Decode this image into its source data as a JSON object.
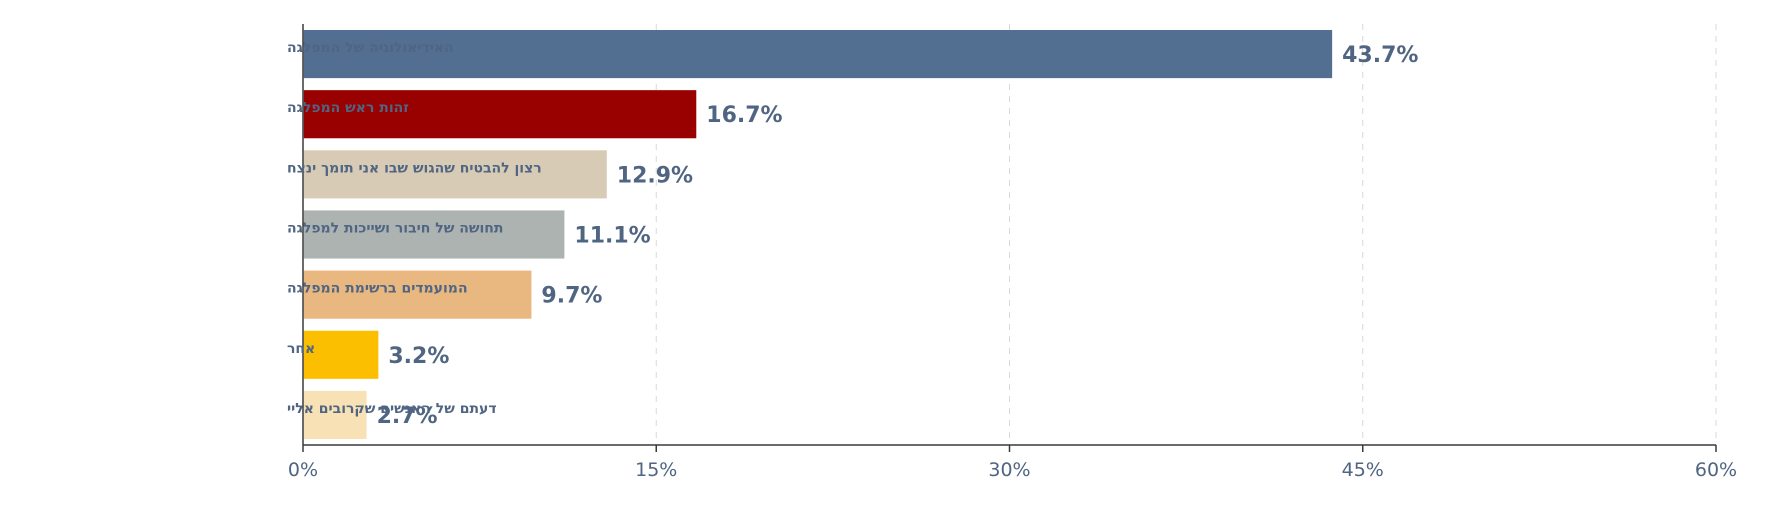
{
  "chart_data": {
    "type": "bar",
    "orientation": "horizontal",
    "categories": [
      "האידיאולוגיה של המפלגה",
      "זהות ראש המפלגה",
      "רצון להבטיח שהגוש שבו אני תומך ינצח",
      "תחושה של חיבור ושייכות למפלגה",
      "המועמדים ברשימת המפלגה",
      "אחר",
      "דעתם של האנשים שקרובים אליי"
    ],
    "values": [
      43.7,
      16.7,
      12.9,
      11.1,
      9.7,
      3.2,
      2.7
    ],
    "value_labels": [
      "43.7%",
      "16.7%",
      "12.9%",
      "11.1%",
      "9.7%",
      "3.2%",
      "2.7%"
    ],
    "colors": [
      "#526f91",
      "#990000",
      "#d8cbb5",
      "#adb3b1",
      "#e9b780",
      "#fbbf00",
      "#f9e1b6"
    ],
    "xlim": [
      0,
      60
    ],
    "xticks": [
      0,
      15,
      30,
      45,
      60
    ],
    "xtick_labels": [
      "0%",
      "15%",
      "30%",
      "45%",
      "60%"
    ],
    "grid": true,
    "legend": "none",
    "title": "",
    "xlabel": "",
    "ylabel": ""
  }
}
